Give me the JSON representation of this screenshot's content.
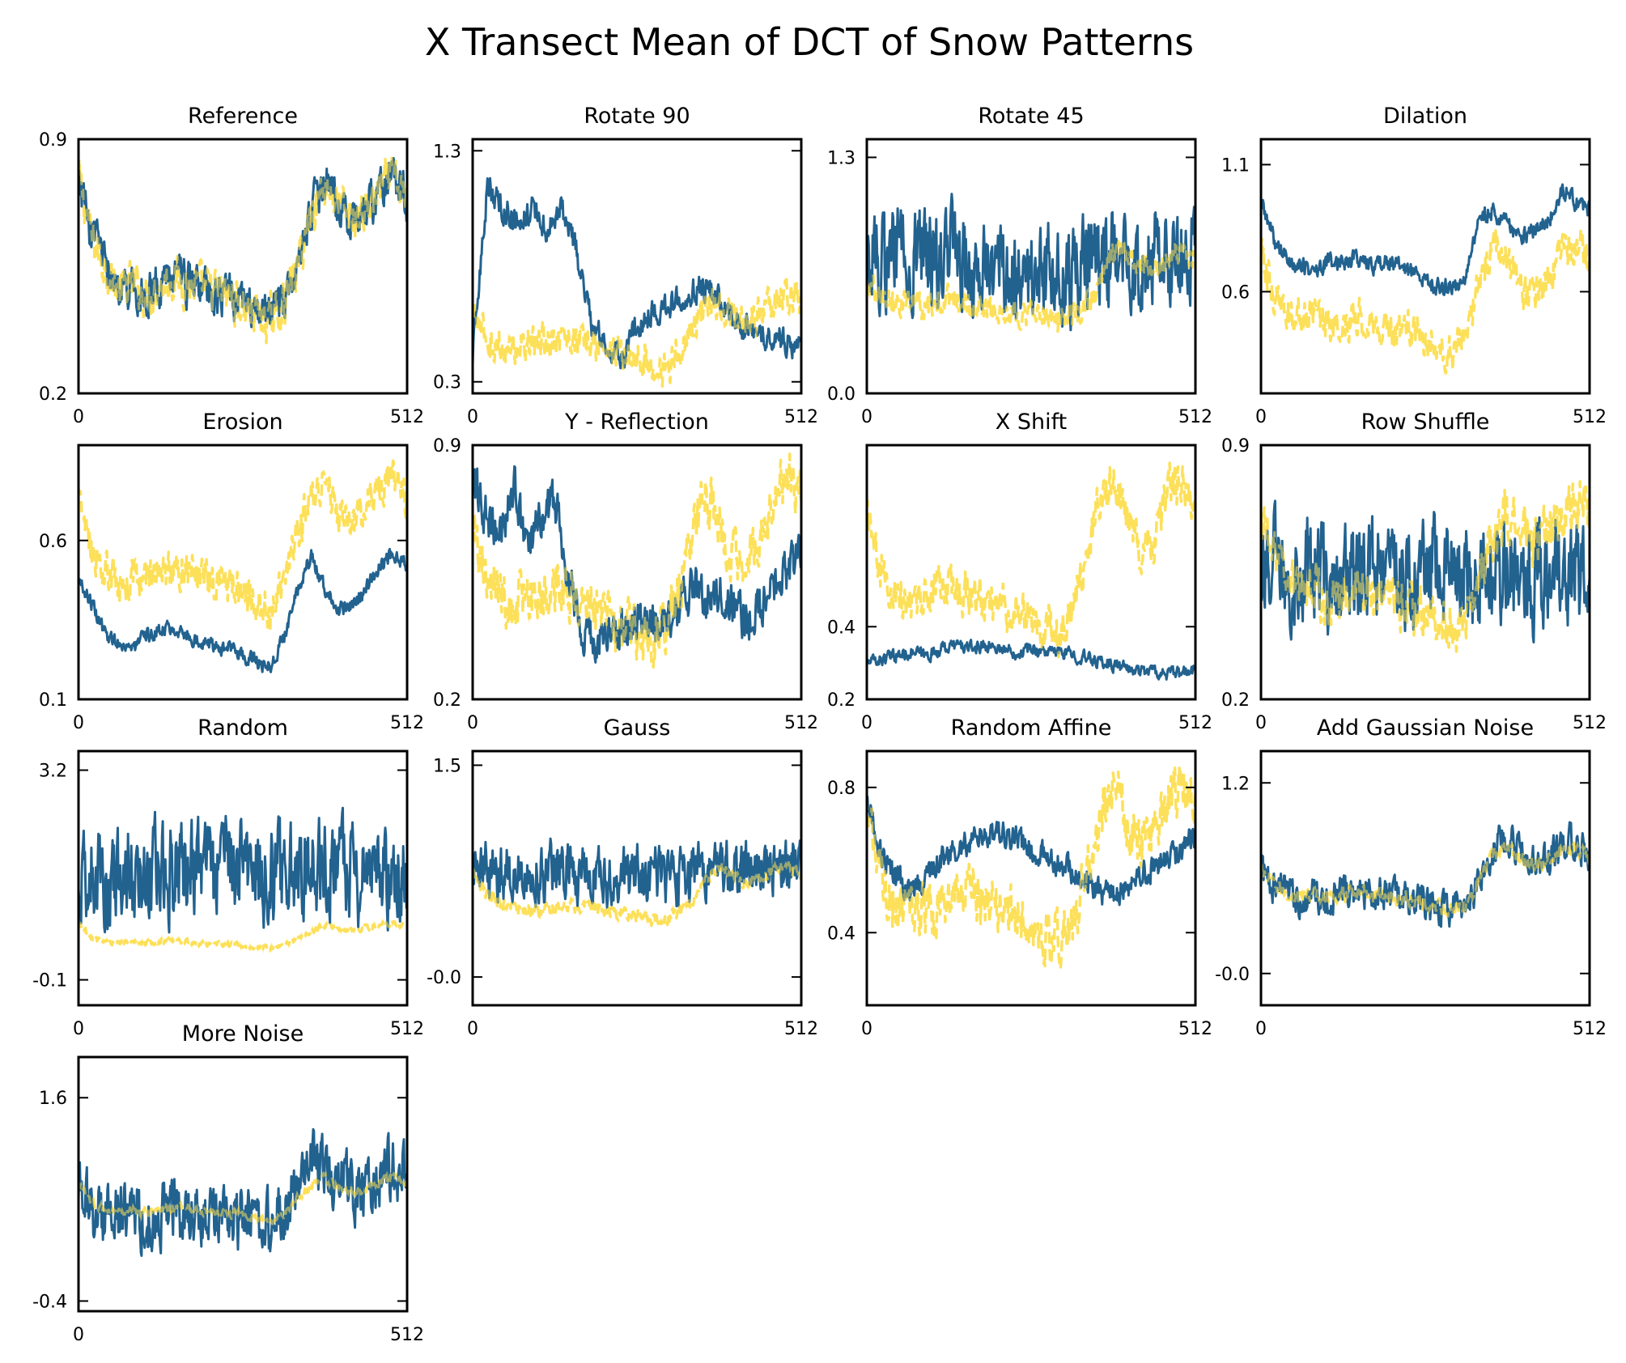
{
  "chart_data": {
    "title": "X Transect Mean of DCT of Snow Patterns",
    "type": "line",
    "colors": {
      "transformed": "#22628f",
      "reference": "#fde05a"
    },
    "panels": [
      {
        "title": "Reference",
        "ylim": [
          0.2,
          0.9
        ],
        "yticks": [
          "0.9",
          "0.2"
        ],
        "xticks": [
          "0",
          "512"
        ],
        "transformed": {
          "style": "solid",
          "base": [
            0.8,
            0.62,
            0.55,
            0.48,
            0.5,
            0.47,
            0.5,
            0.52,
            0.5,
            0.49,
            0.48,
            0.47,
            0.44,
            0.42,
            0.4,
            0.45,
            0.55,
            0.7,
            0.78,
            0.72,
            0.68,
            0.7,
            0.76,
            0.8,
            0.72
          ],
          "noise": 0.05
        },
        "reference": {
          "style": "dashed",
          "base": [
            0.8,
            0.62,
            0.55,
            0.48,
            0.5,
            0.47,
            0.5,
            0.52,
            0.5,
            0.49,
            0.48,
            0.47,
            0.44,
            0.42,
            0.4,
            0.45,
            0.55,
            0.7,
            0.78,
            0.72,
            0.68,
            0.7,
            0.76,
            0.8,
            0.72
          ],
          "noise": 0.05
        }
      },
      {
        "title": "Rotate 90",
        "ylim": [
          0.25,
          1.35
        ],
        "yticks": [
          "1.3",
          "0.3"
        ],
        "xticks": [
          "0",
          "512"
        ],
        "transformed": {
          "style": "solid",
          "base": [
            0.4,
            1.15,
            1.05,
            1.0,
            1.05,
            0.95,
            1.05,
            0.85,
            0.55,
            0.45,
            0.4,
            0.55,
            0.6,
            0.62,
            0.68,
            0.7,
            0.7,
            0.62,
            0.55,
            0.5,
            0.5,
            0.48,
            0.45
          ],
          "noise": 0.05
        },
        "reference": {
          "style": "dashed",
          "base": [
            0.6,
            0.48,
            0.44,
            0.45,
            0.47,
            0.48,
            0.5,
            0.48,
            0.46,
            0.44,
            0.42,
            0.4,
            0.38,
            0.36,
            0.45,
            0.58,
            0.65,
            0.6,
            0.55,
            0.58,
            0.65,
            0.68,
            0.65
          ],
          "noise": 0.06
        }
      },
      {
        "title": "Rotate 45",
        "ylim": [
          0.0,
          1.4
        ],
        "yticks": [
          "1.3",
          "0.0"
        ],
        "xticks": [
          "0",
          "512"
        ],
        "transformed": {
          "style": "solid",
          "base": [
            0.8,
            0.75,
            0.8,
            0.78,
            0.75,
            0.72,
            0.85,
            0.68,
            0.65,
            0.68,
            0.66,
            0.65,
            0.68,
            0.66,
            0.65,
            0.68,
            0.7,
            0.8,
            0.78,
            0.72,
            0.8,
            0.75,
            0.7,
            0.8
          ],
          "noise": 0.22
        },
        "reference": {
          "style": "dashed",
          "base": [
            0.62,
            0.56,
            0.52,
            0.5,
            0.48,
            0.5,
            0.52,
            0.5,
            0.48,
            0.46,
            0.46,
            0.44,
            0.44,
            0.42,
            0.42,
            0.44,
            0.55,
            0.75,
            0.8,
            0.7,
            0.65,
            0.72,
            0.78,
            0.75
          ],
          "noise": 0.06
        }
      },
      {
        "title": "Dilation",
        "ylim": [
          0.2,
          1.2
        ],
        "yticks": [
          "1.1",
          "0.6"
        ],
        "xticks": [
          "0",
          "512"
        ],
        "transformed": {
          "style": "solid",
          "base": [
            0.95,
            0.8,
            0.72,
            0.7,
            0.68,
            0.72,
            0.72,
            0.74,
            0.7,
            0.72,
            0.7,
            0.68,
            0.64,
            0.62,
            0.62,
            0.66,
            0.9,
            0.92,
            0.86,
            0.82,
            0.84,
            0.88,
            1.0,
            0.95,
            0.92
          ],
          "noise": 0.03
        },
        "reference": {
          "style": "dashed",
          "base": [
            0.75,
            0.58,
            0.52,
            0.48,
            0.5,
            0.46,
            0.48,
            0.5,
            0.48,
            0.46,
            0.44,
            0.45,
            0.42,
            0.38,
            0.35,
            0.45,
            0.65,
            0.8,
            0.72,
            0.62,
            0.6,
            0.66,
            0.75,
            0.8,
            0.72
          ],
          "noise": 0.06
        }
      },
      {
        "title": "Erosion",
        "ylim": [
          0.1,
          0.9
        ],
        "yticks": [
          "0.6",
          "0.1"
        ],
        "xticks": [
          "0",
          "512"
        ],
        "transformed": {
          "style": "solid",
          "base": [
            0.48,
            0.4,
            0.3,
            0.28,
            0.26,
            0.3,
            0.32,
            0.33,
            0.3,
            0.28,
            0.27,
            0.26,
            0.24,
            0.22,
            0.2,
            0.3,
            0.45,
            0.55,
            0.45,
            0.38,
            0.4,
            0.45,
            0.52,
            0.56,
            0.52
          ],
          "noise": 0.02
        },
        "reference": {
          "style": "dashed",
          "base": [
            0.75,
            0.55,
            0.5,
            0.46,
            0.48,
            0.47,
            0.5,
            0.52,
            0.5,
            0.49,
            0.47,
            0.46,
            0.43,
            0.4,
            0.38,
            0.45,
            0.6,
            0.75,
            0.78,
            0.68,
            0.65,
            0.7,
            0.76,
            0.82,
            0.72
          ],
          "noise": 0.05
        }
      },
      {
        "title": "Y - Reflection",
        "ylim": [
          0.2,
          0.9
        ],
        "yticks": [
          "0.9",
          "0.2"
        ],
        "xticks": [
          "0",
          "512"
        ],
        "transformed": {
          "style": "solid",
          "base": [
            0.8,
            0.7,
            0.65,
            0.8,
            0.6,
            0.7,
            0.75,
            0.55,
            0.4,
            0.35,
            0.38,
            0.4,
            0.42,
            0.4,
            0.42,
            0.45,
            0.5,
            0.48,
            0.5,
            0.45,
            0.42,
            0.45,
            0.5,
            0.55,
            0.6
          ],
          "noise": 0.05
        },
        "reference": {
          "style": "dashed",
          "base": [
            0.68,
            0.55,
            0.48,
            0.45,
            0.5,
            0.48,
            0.52,
            0.5,
            0.48,
            0.44,
            0.42,
            0.4,
            0.38,
            0.36,
            0.4,
            0.5,
            0.65,
            0.75,
            0.7,
            0.6,
            0.58,
            0.62,
            0.75,
            0.82,
            0.75
          ],
          "noise": 0.06
        }
      },
      {
        "title": "X Shift",
        "ylim": [
          0.2,
          0.9
        ],
        "yticks": [
          "0.4",
          "0.2"
        ],
        "xticks": [
          "0",
          "512"
        ],
        "transformed": {
          "style": "solid",
          "base": [
            0.3,
            0.31,
            0.32,
            0.33,
            0.32,
            0.34,
            0.35,
            0.34,
            0.35,
            0.34,
            0.33,
            0.34,
            0.33,
            0.33,
            0.32,
            0.31,
            0.3,
            0.29,
            0.28,
            0.28,
            0.27,
            0.27,
            0.28
          ],
          "noise": 0.015
        },
        "reference": {
          "style": "dashed",
          "base": [
            0.72,
            0.55,
            0.5,
            0.48,
            0.46,
            0.5,
            0.52,
            0.5,
            0.48,
            0.47,
            0.45,
            0.44,
            0.42,
            0.4,
            0.38,
            0.45,
            0.6,
            0.75,
            0.8,
            0.7,
            0.6,
            0.65,
            0.78,
            0.82,
            0.7
          ],
          "noise": 0.05
        }
      },
      {
        "title": "Row Shuffle",
        "ylim": [
          0.2,
          0.9
        ],
        "yticks": [
          "0.9",
          "0.2"
        ],
        "xticks": [
          "0",
          "512"
        ],
        "transformed": {
          "style": "solid",
          "base": [
            0.6,
            0.58,
            0.55,
            0.56,
            0.55,
            0.54,
            0.55,
            0.56,
            0.54,
            0.55,
            0.54,
            0.55,
            0.56,
            0.55,
            0.54,
            0.55,
            0.56,
            0.55,
            0.54,
            0.55,
            0.56,
            0.55,
            0.54
          ],
          "noise": 0.12
        },
        "reference": {
          "style": "dashed",
          "base": [
            0.7,
            0.6,
            0.52,
            0.48,
            0.5,
            0.47,
            0.5,
            0.52,
            0.5,
            0.49,
            0.47,
            0.46,
            0.44,
            0.42,
            0.4,
            0.44,
            0.55,
            0.65,
            0.72,
            0.68,
            0.64,
            0.66,
            0.72,
            0.75,
            0.7
          ],
          "noise": 0.06
        }
      },
      {
        "title": "Random",
        "ylim": [
          -0.5,
          3.5
        ],
        "yticks": [
          "3.2",
          "-0.1"
        ],
        "xticks": [
          "0",
          "512"
        ],
        "transformed": {
          "style": "solid",
          "base": [
            1.6,
            1.6,
            1.55,
            1.6,
            1.65,
            1.6,
            1.55,
            1.6,
            1.6,
            1.55,
            1.6,
            1.65,
            1.6,
            1.6,
            1.55,
            1.6,
            1.6,
            1.65,
            1.6,
            1.55,
            1.6,
            1.6,
            1.55
          ],
          "noise": 0.65
        },
        "reference": {
          "style": "dashed",
          "base": [
            0.8,
            0.55,
            0.5,
            0.48,
            0.5,
            0.48,
            0.5,
            0.52,
            0.5,
            0.48,
            0.47,
            0.46,
            0.44,
            0.42,
            0.4,
            0.45,
            0.55,
            0.68,
            0.75,
            0.7,
            0.68,
            0.72,
            0.78,
            0.8,
            0.72
          ],
          "noise": 0.04
        }
      },
      {
        "title": "Gauss",
        "ylim": [
          -0.2,
          1.6
        ],
        "yticks": [
          "1.5",
          "-0.0"
        ],
        "xticks": [
          "0",
          "512"
        ],
        "transformed": {
          "style": "solid",
          "base": [
            0.8,
            0.78,
            0.75,
            0.76,
            0.75,
            0.74,
            0.78,
            0.75,
            0.72,
            0.74,
            0.72,
            0.74,
            0.73,
            0.72,
            0.7,
            0.72,
            0.75,
            0.78,
            0.8,
            0.78,
            0.76,
            0.78,
            0.8,
            0.78
          ],
          "noise": 0.17
        },
        "reference": {
          "style": "dashed",
          "base": [
            0.75,
            0.58,
            0.52,
            0.48,
            0.5,
            0.47,
            0.5,
            0.52,
            0.5,
            0.49,
            0.47,
            0.46,
            0.44,
            0.42,
            0.4,
            0.45,
            0.55,
            0.7,
            0.78,
            0.72,
            0.68,
            0.7,
            0.76,
            0.8,
            0.72
          ],
          "noise": 0.04
        }
      },
      {
        "title": "Random Affine",
        "ylim": [
          0.2,
          0.9
        ],
        "yticks": [
          "0.8",
          "0.4"
        ],
        "xticks": [
          "0",
          "512"
        ],
        "transformed": {
          "style": "solid",
          "base": [
            0.78,
            0.62,
            0.55,
            0.52,
            0.55,
            0.6,
            0.62,
            0.64,
            0.66,
            0.68,
            0.66,
            0.64,
            0.62,
            0.6,
            0.58,
            0.55,
            0.52,
            0.5,
            0.52,
            0.55,
            0.58,
            0.6,
            0.62,
            0.68
          ],
          "noise": 0.03
        },
        "reference": {
          "style": "dashed",
          "base": [
            0.75,
            0.55,
            0.48,
            0.46,
            0.48,
            0.46,
            0.5,
            0.52,
            0.5,
            0.48,
            0.46,
            0.45,
            0.42,
            0.4,
            0.38,
            0.42,
            0.55,
            0.72,
            0.8,
            0.72,
            0.65,
            0.68,
            0.76,
            0.82,
            0.75
          ],
          "noise": 0.06
        }
      },
      {
        "title": "Add Gaussian Noise",
        "ylim": [
          -0.2,
          1.4
        ],
        "yticks": [
          "1.2",
          "-0.0"
        ],
        "xticks": [
          "0",
          "512"
        ],
        "transformed": {
          "style": "solid",
          "base": [
            0.65,
            0.55,
            0.5,
            0.48,
            0.5,
            0.47,
            0.5,
            0.52,
            0.5,
            0.49,
            0.47,
            0.46,
            0.44,
            0.42,
            0.4,
            0.45,
            0.6,
            0.78,
            0.85,
            0.75,
            0.7,
            0.72,
            0.8,
            0.85,
            0.72
          ],
          "noise": 0.09
        },
        "reference": {
          "style": "dashed",
          "base": [
            0.65,
            0.55,
            0.5,
            0.48,
            0.5,
            0.47,
            0.5,
            0.52,
            0.5,
            0.49,
            0.47,
            0.46,
            0.44,
            0.42,
            0.4,
            0.45,
            0.6,
            0.75,
            0.8,
            0.72,
            0.68,
            0.7,
            0.76,
            0.8,
            0.72
          ],
          "noise": 0.04
        }
      },
      {
        "title": "More Noise",
        "ylim": [
          -0.5,
          2.0
        ],
        "yticks": [
          "1.6",
          "-0.4"
        ],
        "xticks": [
          "0",
          "512"
        ],
        "transformed": {
          "style": "solid",
          "base": [
            0.7,
            0.5,
            0.45,
            0.4,
            0.45,
            0.4,
            0.45,
            0.5,
            0.45,
            0.4,
            0.42,
            0.4,
            0.38,
            0.35,
            0.35,
            0.45,
            0.7,
            0.95,
            0.9,
            0.75,
            0.7,
            0.72,
            0.8,
            0.95,
            0.8
          ],
          "noise": 0.26
        },
        "reference": {
          "style": "dashed",
          "base": [
            0.75,
            0.55,
            0.5,
            0.48,
            0.5,
            0.47,
            0.5,
            0.52,
            0.5,
            0.49,
            0.47,
            0.46,
            0.44,
            0.42,
            0.4,
            0.45,
            0.6,
            0.75,
            0.8,
            0.72,
            0.68,
            0.7,
            0.76,
            0.82,
            0.72
          ],
          "noise": 0.04
        }
      }
    ]
  }
}
